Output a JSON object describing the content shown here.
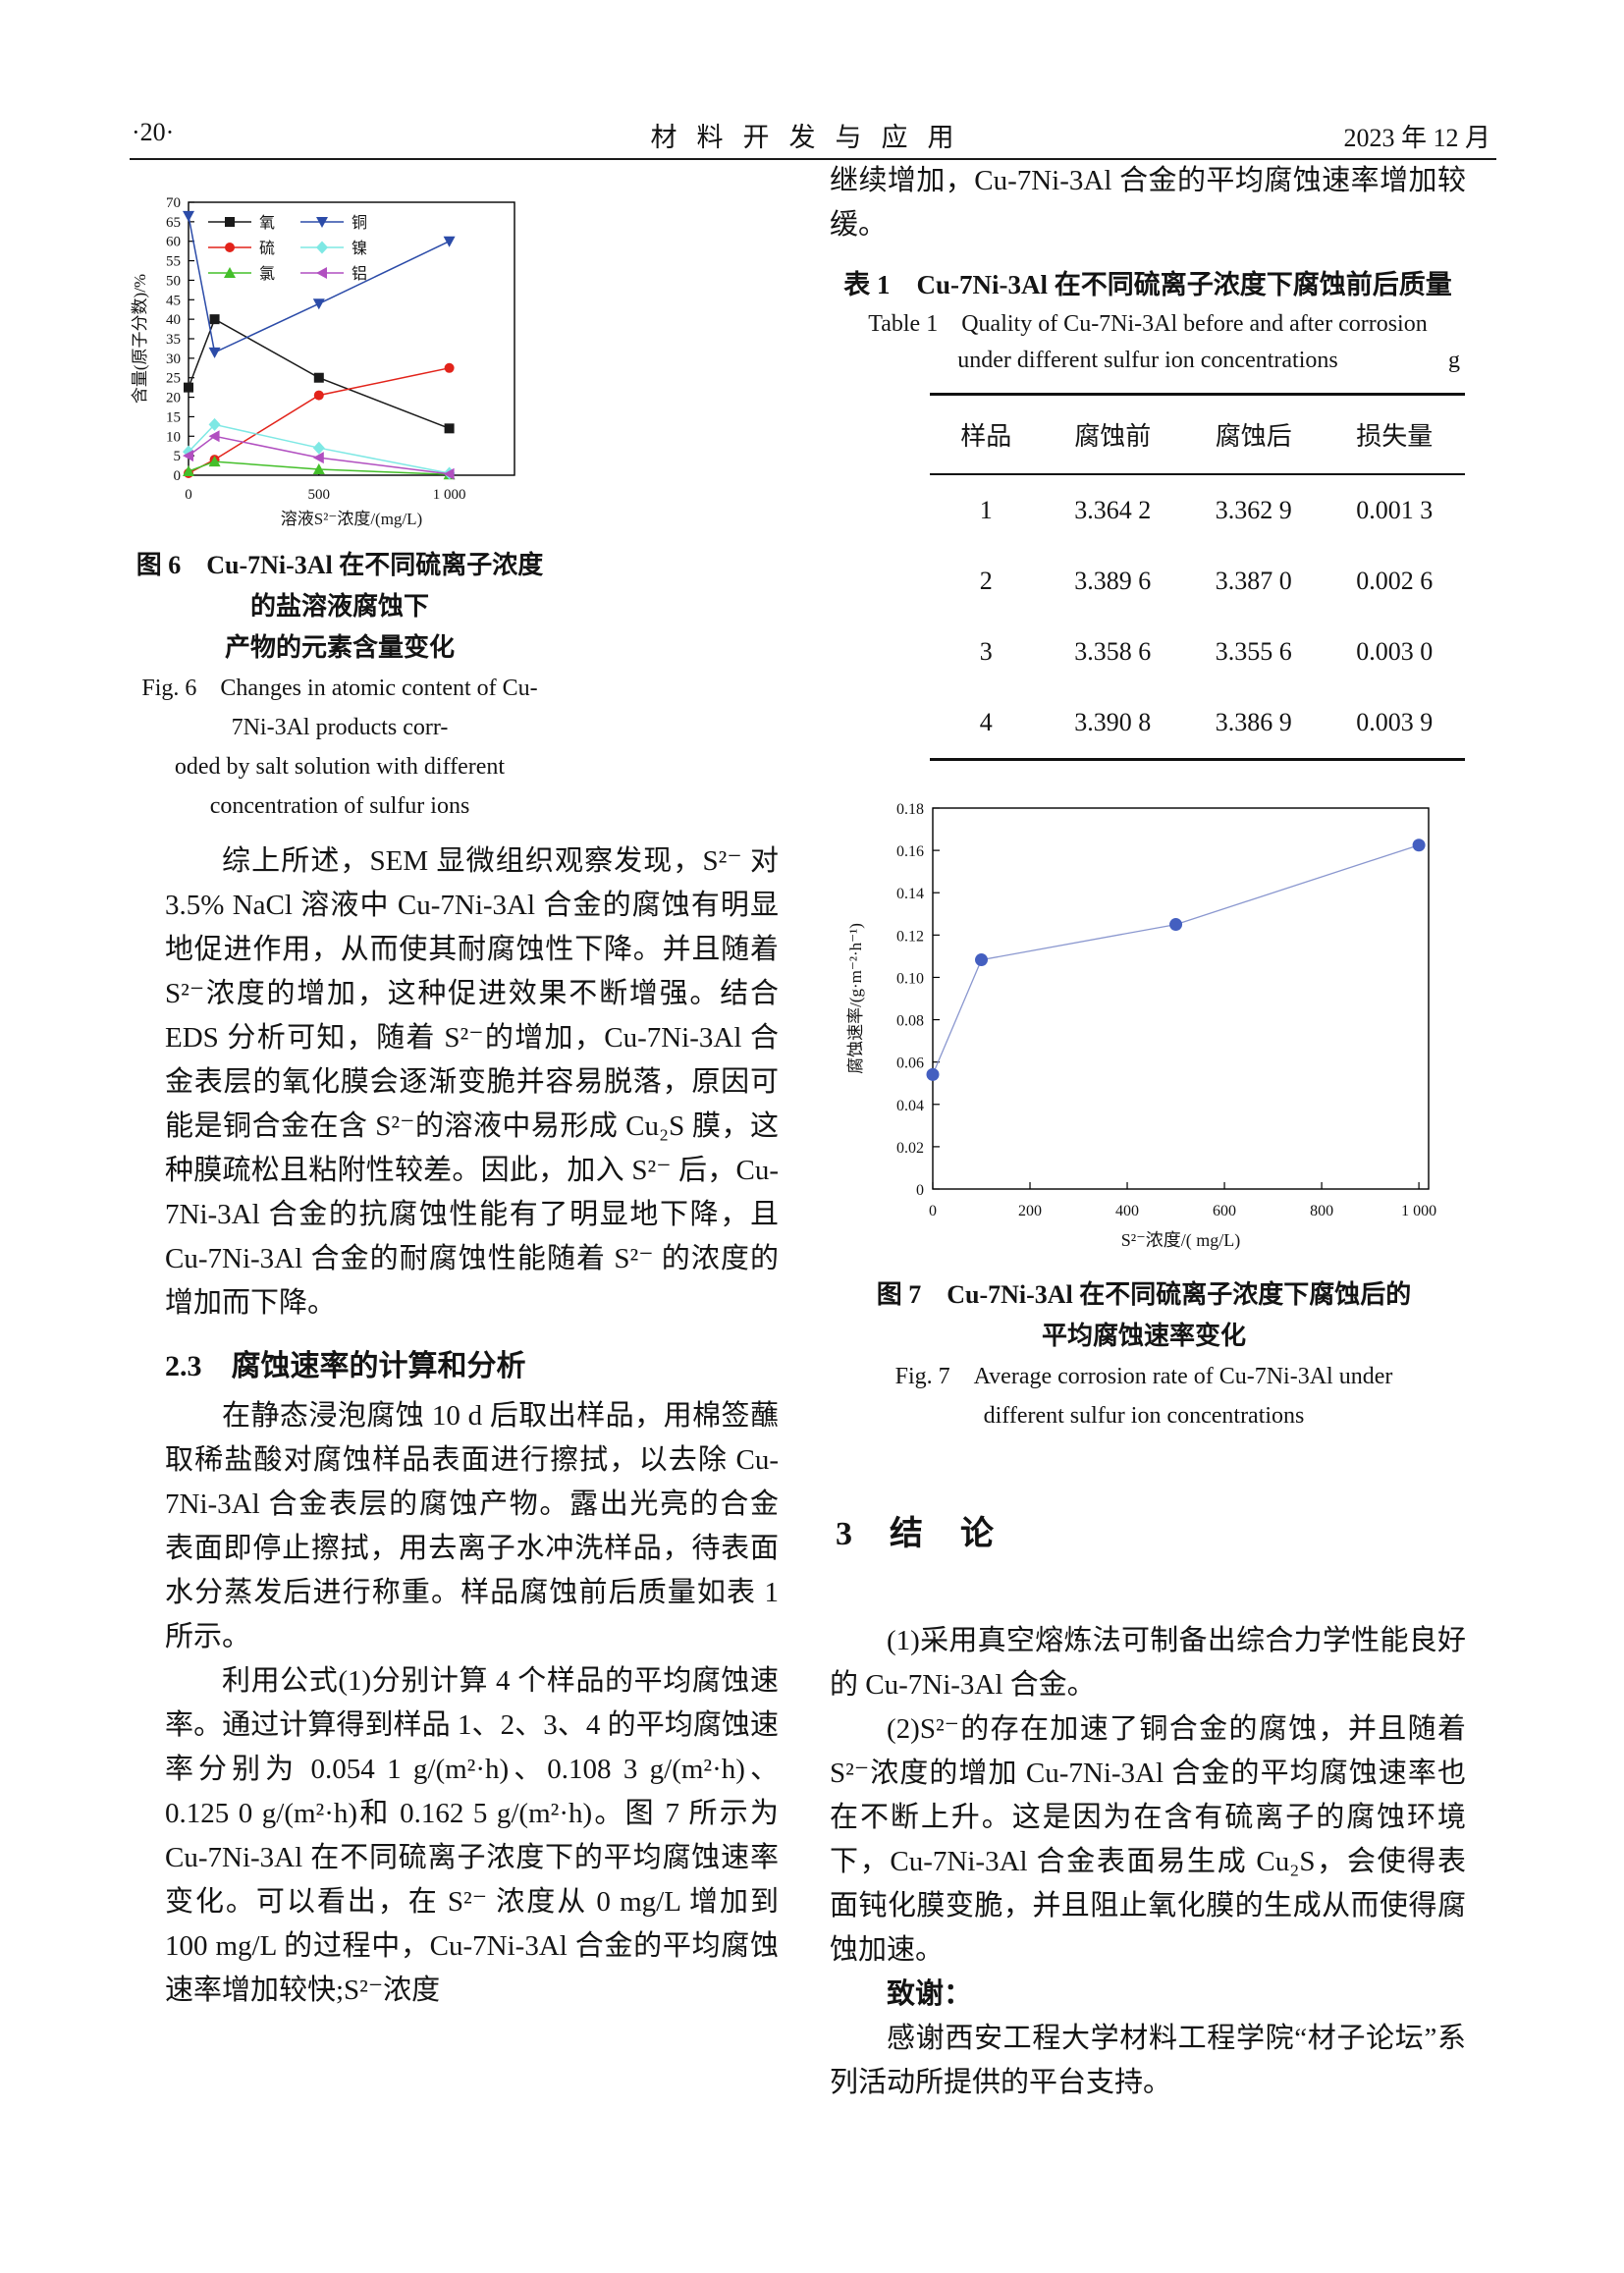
{
  "page": {
    "page_number": "·20·",
    "journal_title": "材料开发与应用",
    "issue_date": "2023 年 12 月"
  },
  "left_column": {
    "fig6": {
      "caption_cn_1": "图 6　Cu-7Ni-3Al 在不同硫离子浓度的盐溶液腐蚀下",
      "caption_cn_2": "产物的元素含量变化",
      "caption_en_1": "Fig. 6　Changes in atomic content of Cu-7Ni-3Al products corr-",
      "caption_en_2": "oded by salt solution with different concentration of sulfur ions"
    },
    "para1": "综上所述，SEM 显微组织观察发现，S²⁻ 对 3.5% NaCl 溶液中 Cu-7Ni-3Al 合金的腐蚀有明显地促进作用，从而使其耐腐蚀性下降。并且随着 S²⁻浓度的增加，这种促进效果不断增强。结合 EDS 分析可知，随着 S²⁻的增加，Cu-7Ni-3Al 合金表层的氧化膜会逐渐变脆并容易脱落，原因可能是铜合金在含 S²⁻的溶液中易形成 Cu₂S 膜，这种膜疏松且粘附性较差。因此，加入 S²⁻ 后，Cu-7Ni-3Al 合金的抗腐蚀性能有了明显地下降，且 Cu-7Ni-3Al 合金的耐腐蚀性能随着 S²⁻ 的浓度的增加而下降。",
    "heading_2_3": "2.3　腐蚀速率的计算和分析",
    "para2": "在静态浸泡腐蚀 10 d 后取出样品，用棉签蘸取稀盐酸对腐蚀样品表面进行擦拭，以去除 Cu-7Ni-3Al 合金表层的腐蚀产物。露出光亮的合金表面即停止擦拭，用去离子水冲洗样品，待表面水分蒸发后进行称重。样品腐蚀前后质量如表 1 所示。",
    "para3": "利用公式(1)分别计算 4 个样品的平均腐蚀速率。通过计算得到样品 1、2、3、4 的平均腐蚀速率分别为 0.054 1 g/(m²·h)、0.108 3 g/(m²·h)、0.125 0 g/(m²·h)和 0.162 5 g/(m²·h)。图 7 所示为 Cu-7Ni-3Al 在不同硫离子浓度下的平均腐蚀速率变化。可以看出，在 S²⁻ 浓度从 0 mg/L 增加到 100 mg/L 的过程中，Cu-7Ni-3Al 合金的平均腐蚀速率增加较快;S²⁻浓度"
  },
  "right_column": {
    "para_cont": "继续增加，Cu-7Ni-3Al 合金的平均腐蚀速率增加较缓。",
    "table1": {
      "title_cn": "表 1　Cu-7Ni-3Al 在不同硫离子浓度下腐蚀前后质量",
      "title_en_1": "Table 1　Quality of Cu-7Ni-3Al before and after corrosion",
      "title_en_2": "under different sulfur ion concentrations",
      "unit": "g",
      "headers": [
        "样品",
        "腐蚀前",
        "腐蚀后",
        "损失量"
      ],
      "rows": [
        [
          "1",
          "3.364 2",
          "3.362 9",
          "0.001 3"
        ],
        [
          "2",
          "3.389 6",
          "3.387 0",
          "0.002 6"
        ],
        [
          "3",
          "3.358 6",
          "3.355 6",
          "0.003 0"
        ],
        [
          "4",
          "3.390 8",
          "3.386 9",
          "0.003 9"
        ]
      ]
    },
    "fig7": {
      "caption_cn_1": "图 7　Cu-7Ni-3Al 在不同硫离子浓度下腐蚀后的",
      "caption_cn_2": "平均腐蚀速率变化",
      "caption_en_1": "Fig. 7　Average corrosion rate of Cu-7Ni-3Al under",
      "caption_en_2": "different sulfur ion concentrations"
    },
    "heading_3": "3　结　论",
    "para_c1": "(1)采用真空熔炼法可制备出综合力学性能良好的 Cu-7Ni-3Al 合金。",
    "para_c2": "(2)S²⁻的存在加速了铜合金的腐蚀，并且随着 S²⁻浓度的增加 Cu-7Ni-3Al 合金的平均腐蚀速率也在不断上升。这是因为在含有硫离子的腐蚀环境下，Cu-7Ni-3Al 合金表面易生成 Cu₂S，会使得表面钝化膜变脆，并且阻止氧化膜的生成从而使得腐蚀加速。",
    "ack_heading": "致谢：",
    "ack_text": "感谢西安工程大学材料工程学院“材子论坛”系列活动所提供的平台支持。"
  },
  "chart_data": [
    {
      "type": "line",
      "title": "Cu-7Ni-3Al 在不同硫离子浓度的盐溶液腐蚀下产物的元素含量变化",
      "xlabel": "溶液S²⁻浓度/(mg/L)",
      "ylabel": "含量(原子分数)/%",
      "x": [
        0,
        100,
        500,
        1000
      ],
      "xlim": [
        0,
        1250
      ],
      "ylim": [
        0,
        70
      ],
      "ytick_step": 5,
      "xticks": [
        0,
        500,
        1000
      ],
      "xtick_labels": [
        "0",
        "500",
        "1 000"
      ],
      "grid": false,
      "legend_position": "top-inside",
      "series": [
        {
          "name": "氧",
          "color": "#1a1a1a",
          "marker": "square",
          "values": [
            22.5,
            40,
            25,
            12
          ]
        },
        {
          "name": "硫",
          "color": "#e2231a",
          "marker": "circle",
          "values": [
            0.5,
            4,
            20.5,
            27.5
          ]
        },
        {
          "name": "氯",
          "color": "#44bf2a",
          "marker": "triangle-up",
          "values": [
            1,
            3.5,
            1.5,
            0.2
          ]
        },
        {
          "name": "铜",
          "color": "#2b4ba8",
          "marker": "triangle-down",
          "values": [
            66.5,
            31.5,
            44,
            60
          ]
        },
        {
          "name": "镍",
          "color": "#7ee8e4",
          "marker": "diamond",
          "values": [
            6,
            13,
            7,
            0.5
          ]
        },
        {
          "name": "铝",
          "color": "#b14fc0",
          "marker": "triangle-left",
          "values": [
            5,
            10,
            4.5,
            0.3
          ]
        }
      ]
    },
    {
      "type": "scatter",
      "title": "Cu-7Ni-3Al 在不同硫离子浓度下腐蚀后的平均腐蚀速率变化",
      "xlabel": "S²⁻浓度/( mg/L)",
      "ylabel": "腐蚀速率/(g·m⁻²·h⁻¹)",
      "x": [
        0,
        100,
        500,
        1000
      ],
      "y": [
        0.0541,
        0.1083,
        0.125,
        0.1625
      ],
      "xlim": [
        0,
        1020
      ],
      "ylim": [
        0,
        0.18
      ],
      "xticks": [
        0,
        200,
        400,
        600,
        800,
        1000
      ],
      "xtick_labels": [
        "0",
        "200",
        "400",
        "600",
        "800",
        "1 000"
      ],
      "yticks": [
        0,
        0.02,
        0.04,
        0.06,
        0.08,
        0.1,
        0.12,
        0.14,
        0.16,
        0.18
      ],
      "ytick_labels": [
        "0",
        "0.02",
        "0.04",
        "0.06",
        "0.08",
        "0.10",
        "0.12",
        "0.14",
        "0.16",
        "0.18"
      ],
      "grid": false,
      "point_color": "#44 5fc0",
      "line_color": "#8a97cf"
    }
  ]
}
